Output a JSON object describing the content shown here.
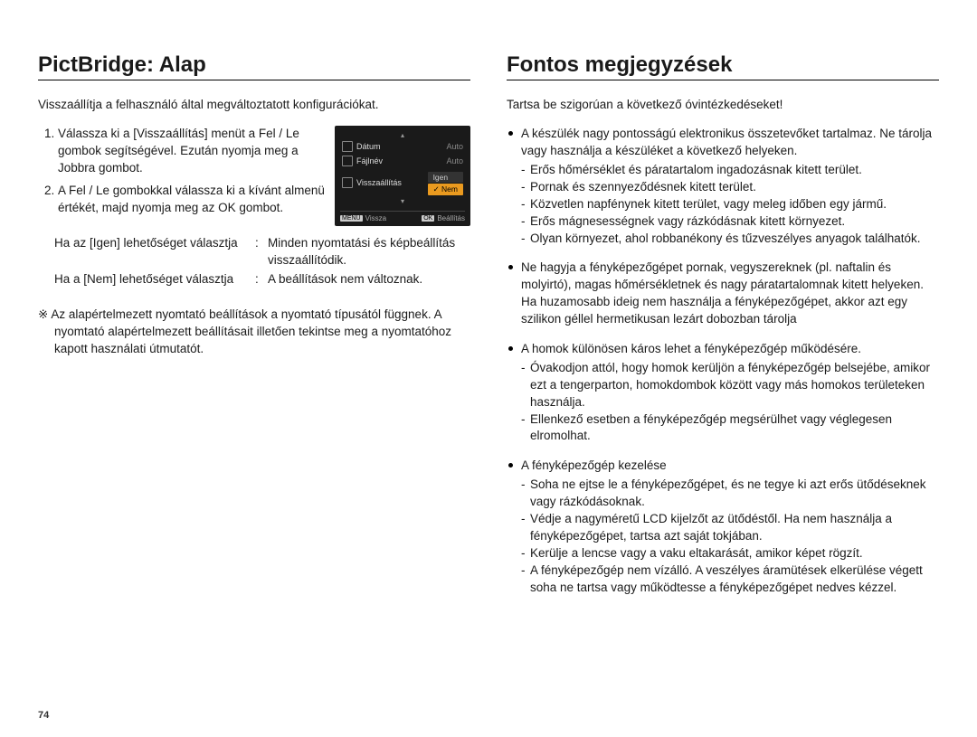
{
  "page_number": "74",
  "left": {
    "title": "PictBridge: Alap",
    "intro": "Visszaállítja a felhasználó által megváltoztatott konfigurációkat.",
    "steps": [
      "Válassza ki a [Visszaállítás] menüt a Fel / Le gombok segítségével. Ezután nyomja meg a Jobbra gombot.",
      "A Fel / Le gombokkal válassza ki a kívánt almenü értékét, majd nyomja meg az OK gombot."
    ],
    "panel": {
      "rows": [
        {
          "label": "Dátum",
          "value": "Auto"
        },
        {
          "label": "Fájlnév",
          "value": "Auto"
        },
        {
          "label": "Visszaállítás",
          "value": ""
        }
      ],
      "options": [
        "Igen",
        "Nem"
      ],
      "highlight_index": 1,
      "bottom_left_tag": "MENU",
      "bottom_left": "Vissza",
      "bottom_right_tag": "OK",
      "bottom_right": "Beállítás",
      "colors": {
        "bg": "#1a1a1a",
        "text": "#dddddd",
        "hi": "#ea9a1f"
      }
    },
    "defs": [
      {
        "l": "Ha az [Igen] lehetőséget választja",
        "r": "Minden nyomtatási és képbeállítás visszaállítódik."
      },
      {
        "l": "Ha a [Nem] lehetőséget választja",
        "r": "A beállítások nem változnak."
      }
    ],
    "note_symbol": "※",
    "note": "Az alapértelmezett nyomtató beállítások a nyomtató típusától függnek. A nyomtató alapértelmezett beállításait illetően tekintse meg a nyomtatóhoz kapott használati útmutatót."
  },
  "right": {
    "title": "Fontos megjegyzések",
    "intro": "Tartsa be szigorúan a következő óvintézkedéseket!",
    "items": [
      {
        "text": "A készülék nagy pontosságú elektronikus összetevőket tartalmaz. Ne tárolja vagy használja a készüléket a következő helyeken.",
        "sub": [
          "Erős hőmérséklet és páratartalom ingadozásnak kitett terület.",
          "Pornak és szennyeződésnek kitett terület.",
          "Közvetlen napfénynek kitett terület, vagy meleg időben egy jármű.",
          "Erős mágnesességnek vagy rázkódásnak kitett környezet.",
          "Olyan környezet, ahol robbanékony és tűzveszélyes anyagok találhatók."
        ]
      },
      {
        "text": "Ne hagyja a fényképezőgépet pornak, vegyszereknek (pl. naftalin és molyirtó), magas hőmérsékletnek és nagy páratartalomnak kitett helyeken. Ha huzamosabb ideig nem használja a fényképezőgépet, akkor azt egy szilikon géllel hermetikusan lezárt dobozban tárolja"
      },
      {
        "text": "A homok különösen káros lehet a fényképezőgép működésére.",
        "sub": [
          "Óvakodjon attól, hogy homok kerüljön a fényképezőgép belsejébe, amikor ezt a tengerparton, homokdombok között vagy más homokos területeken használja.",
          "Ellenkező esetben a fényképezőgép megsérülhet vagy véglegesen elromolhat."
        ]
      },
      {
        "text": "A fényképezőgép kezelése",
        "sub": [
          "Soha ne ejtse le a fényképezőgépet, és ne tegye ki azt erős ütődéseknek vagy rázkódásoknak.",
          "Védje a nagyméretű LCD kijelzőt az ütődéstől. Ha nem használja a fényképezőgépet, tartsa azt saját tokjában.",
          "Kerülje a lencse vagy a vaku eltakarását, amikor képet rögzít.",
          "A fényképezőgép nem vízálló. A veszélyes áramütések elkerülése végett soha ne tartsa vagy működtesse a fényképezőgépet nedves kézzel."
        ]
      }
    ]
  }
}
